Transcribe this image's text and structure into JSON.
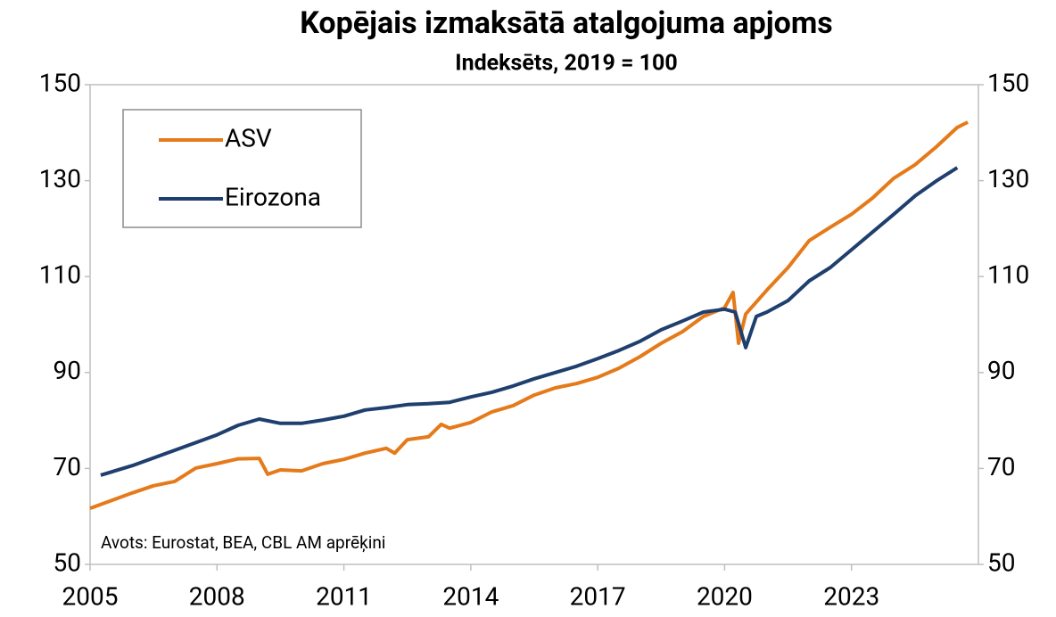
{
  "chart_data": {
    "type": "line",
    "title": "Kopējais izmaksātā atalgojuma apjoms",
    "subtitle": "Indeksēts, 2019 = 100",
    "annotation": "Avots:  Eurostat, BEA, CBL AM aprēķini",
    "xlim": [
      2005,
      2026
    ],
    "xticks": [
      2005,
      2008,
      2011,
      2014,
      2017,
      2020,
      2023
    ],
    "ylim": [
      50,
      150
    ],
    "yticks": [
      50,
      70,
      90,
      110,
      130,
      150
    ],
    "y2lim": [
      50,
      150
    ],
    "y2ticks": [
      50,
      70,
      90,
      110,
      130,
      150
    ],
    "legend": "upper left",
    "series": [
      {
        "name": "ASV",
        "color": "#e57a1a",
        "x": [
          2005.0,
          2006.0,
          2006.5,
          2007.0,
          2007.5,
          2008.0,
          2008.5,
          2009.0,
          2009.2,
          2009.5,
          2010.0,
          2010.5,
          2011.0,
          2011.5,
          2012.0,
          2012.2,
          2012.5,
          2013.0,
          2013.3,
          2013.5,
          2014.0,
          2014.5,
          2015.0,
          2015.5,
          2016.0,
          2016.5,
          2017.0,
          2017.5,
          2018.0,
          2018.5,
          2019.0,
          2019.5,
          2020.0,
          2020.2,
          2020.33,
          2020.5,
          2021.0,
          2021.5,
          2022.0,
          2022.5,
          2023.0,
          2023.5,
          2024.0,
          2024.5,
          2025.0,
          2025.5,
          2025.75
        ],
        "values": [
          61.7,
          64.9,
          66.4,
          67.3,
          70.1,
          71,
          72,
          72.1,
          68.8,
          69.7,
          69.5,
          71,
          71.9,
          73.2,
          74.2,
          73.2,
          76,
          76.6,
          79.2,
          78.4,
          79.6,
          81.8,
          83.1,
          85.3,
          86.8,
          87.7,
          89,
          90.9,
          93.3,
          96.1,
          98.5,
          101.7,
          103.5,
          106.7,
          96.1,
          102.2,
          107.2,
          111.9,
          117.5,
          120.3,
          123,
          126.4,
          130.5,
          133.3,
          137,
          141.1,
          142.2
        ]
      },
      {
        "name": "Eirozona",
        "color": "#1f3f6e",
        "x": [
          2005.25,
          2006.0,
          2007.0,
          2008.0,
          2008.5,
          2009.0,
          2009.5,
          2010.0,
          2010.5,
          2011.0,
          2011.5,
          2012.0,
          2012.5,
          2013.0,
          2013.5,
          2014.0,
          2014.5,
          2015.0,
          2015.5,
          2016.0,
          2016.5,
          2017.0,
          2017.5,
          2018.0,
          2018.5,
          2019.0,
          2019.5,
          2020.0,
          2020.25,
          2020.5,
          2020.75,
          2021.0,
          2021.5,
          2022.0,
          2022.5,
          2023.0,
          2023.5,
          2024.0,
          2024.5,
          2025.0,
          2025.5
        ],
        "values": [
          68.6,
          70.6,
          73.8,
          77,
          79,
          80.3,
          79.4,
          79.4,
          80.1,
          80.9,
          82.2,
          82.7,
          83.3,
          83.5,
          83.8,
          84.9,
          85.9,
          87.2,
          88.7,
          90,
          91.3,
          92.9,
          94.6,
          96.5,
          98.9,
          100.7,
          102.6,
          103.2,
          102.6,
          95.2,
          101.7,
          102.6,
          105,
          109.1,
          111.9,
          115.6,
          119.3,
          123,
          126.8,
          129.9,
          132.7
        ]
      }
    ]
  }
}
